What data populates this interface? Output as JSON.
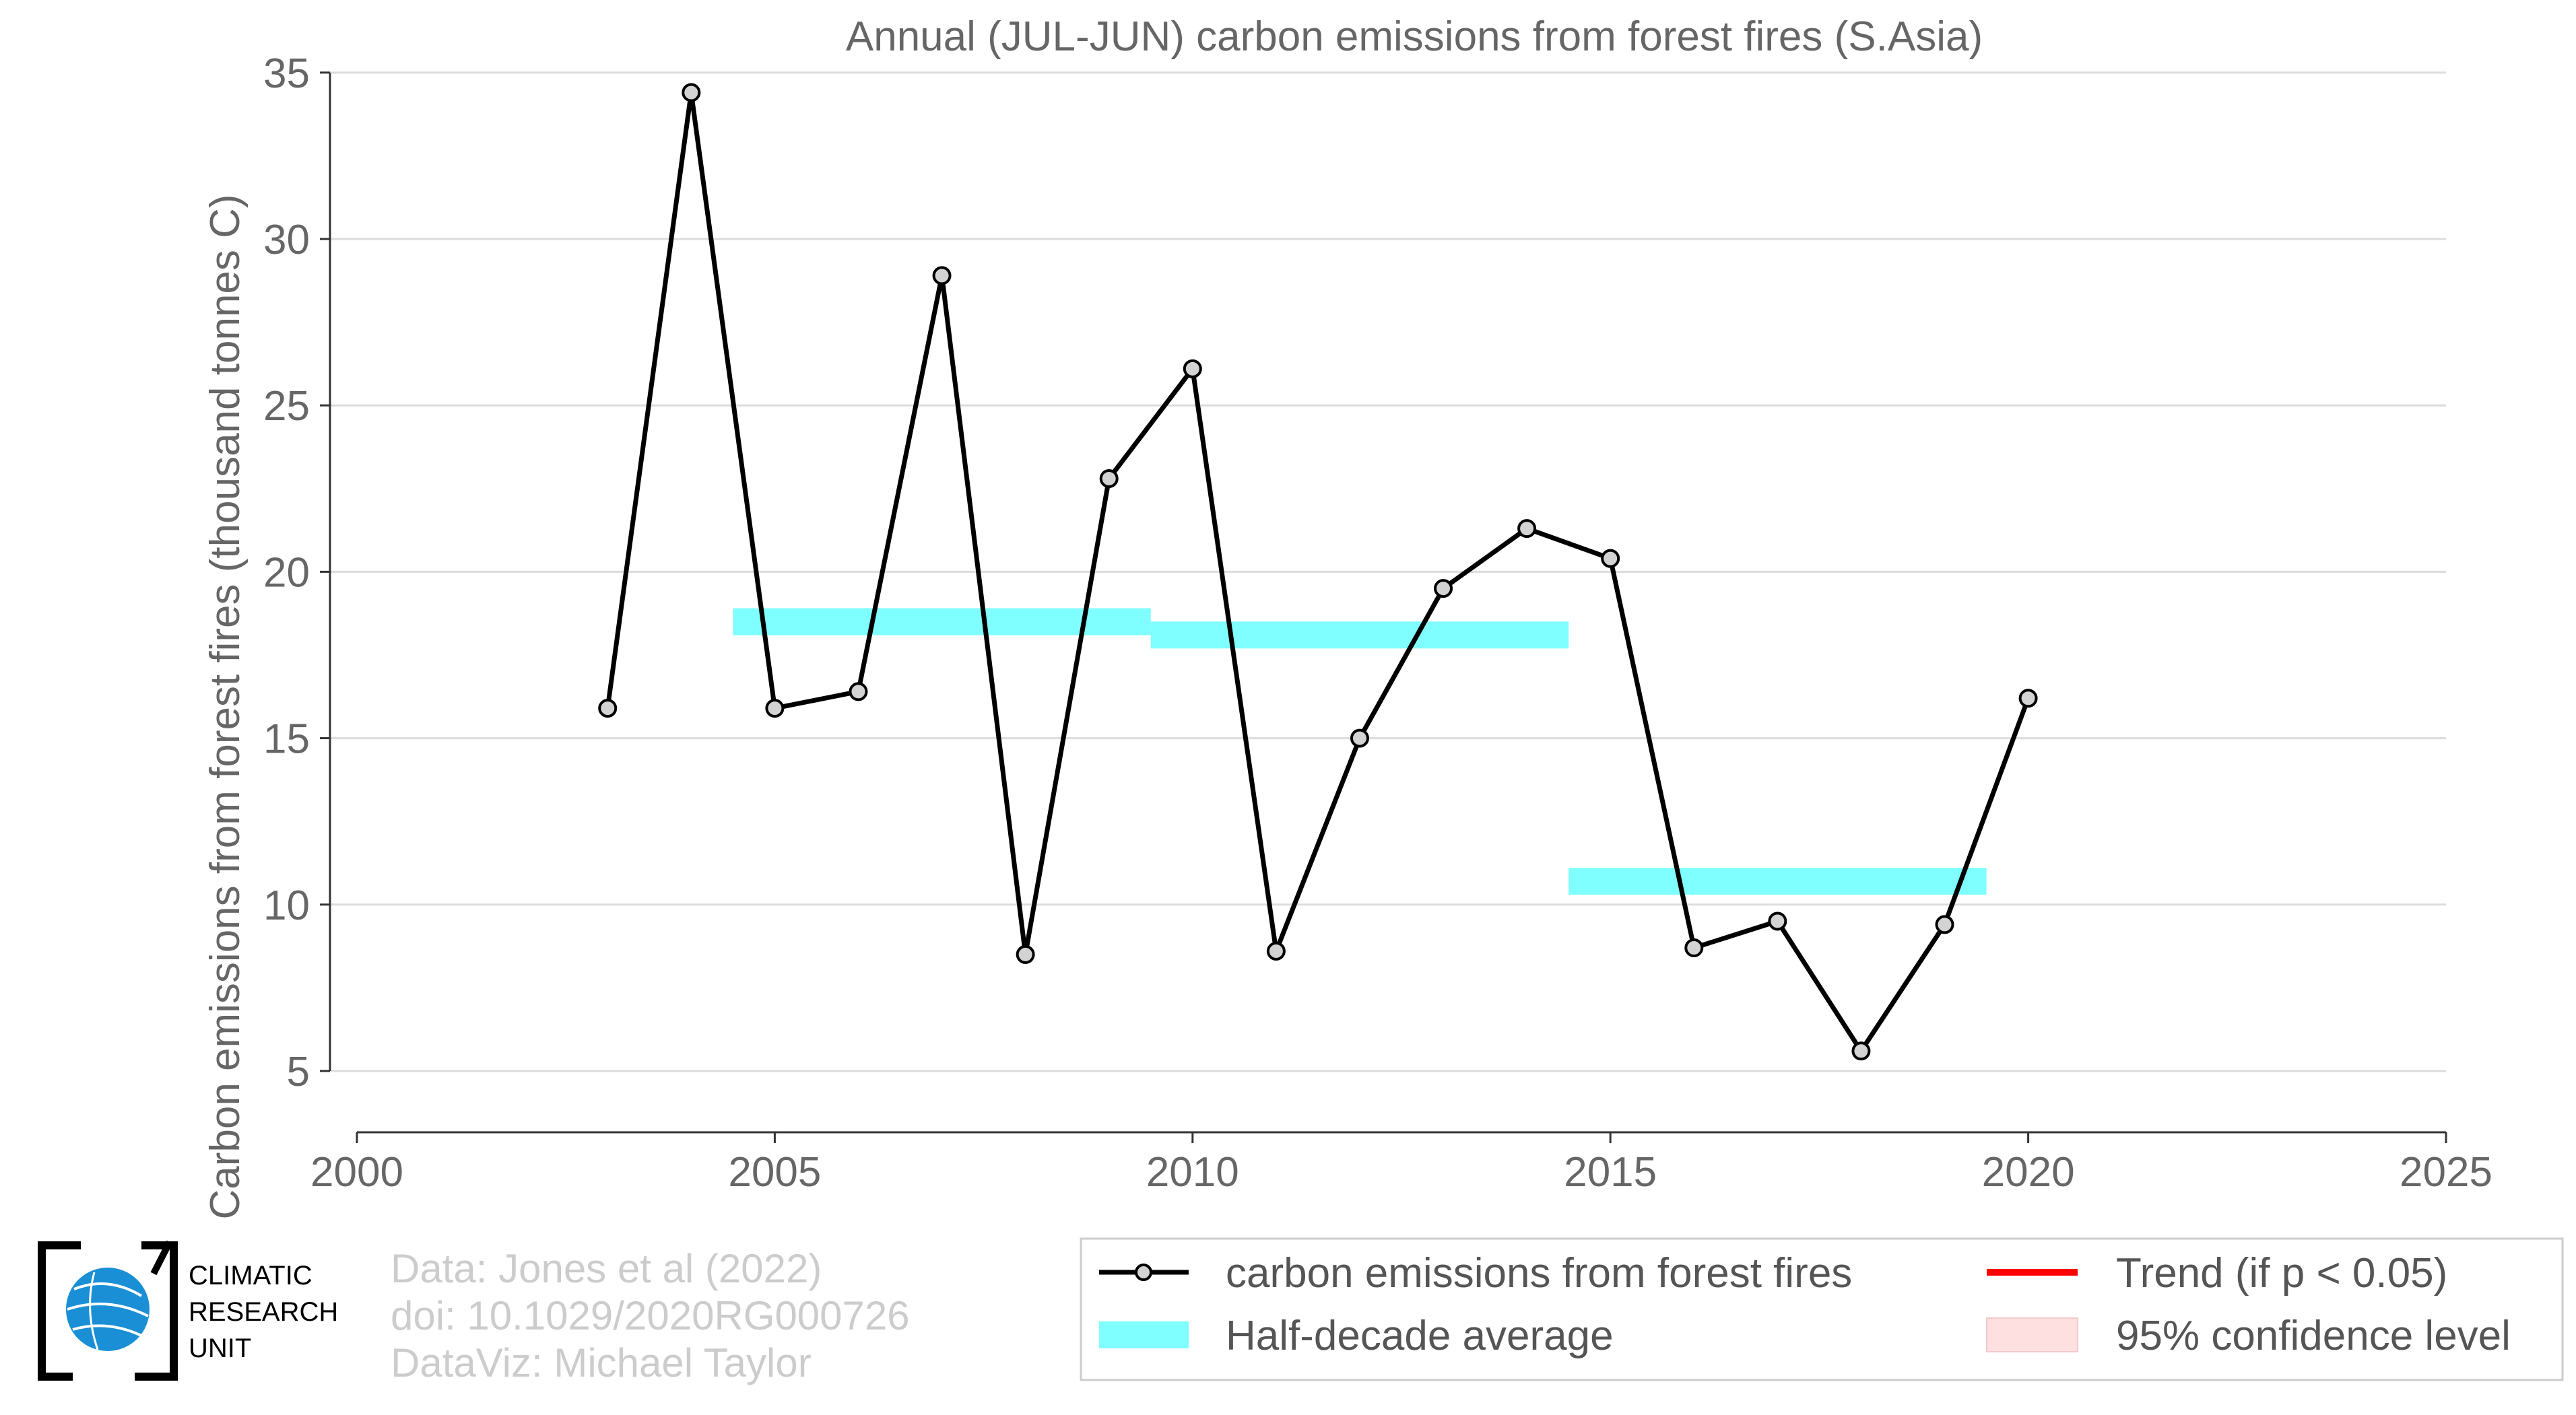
{
  "chart_data": {
    "type": "line",
    "title": "Annual (JUL-JUN) carbon emissions from forest fires (S.Asia)",
    "xlabel": "",
    "ylabel": "Carbon emissions from forest fires (thousand tonnes C)",
    "xlim": [
      2000,
      2025
    ],
    "ylim": [
      3.3,
      35.3
    ],
    "x_ticks": [
      "2000",
      "2005",
      "2010",
      "2015",
      "2020",
      "2025"
    ],
    "y_ticks": [
      "5",
      "10",
      "15",
      "20",
      "25",
      "30",
      "35"
    ],
    "grid": "horizontal",
    "series": [
      {
        "name": "carbon emissions from forest fires",
        "color": "#000000",
        "marker_fill": "#d3d3d3",
        "x": [
          2003,
          2004,
          2005,
          2006,
          2007,
          2008,
          2009,
          2010,
          2011,
          2012,
          2013,
          2014,
          2015,
          2016,
          2017,
          2018,
          2019,
          2020
        ],
        "y": [
          15.9,
          34.4,
          15.9,
          16.4,
          28.9,
          8.5,
          22.8,
          26.1,
          8.6,
          15.0,
          19.5,
          21.3,
          20.4,
          8.7,
          9.5,
          5.6,
          9.4,
          16.2
        ]
      }
    ],
    "half_decade_averages": {
      "name": "Half-decade average",
      "color": "#7fffff",
      "segments": [
        {
          "x_start": 2004.5,
          "x_end": 2009.5,
          "y": 18.5
        },
        {
          "x_start": 2009.5,
          "x_end": 2014.5,
          "y": 18.1
        },
        {
          "x_start": 2014.5,
          "x_end": 2019.5,
          "y": 10.7
        }
      ]
    },
    "legend": {
      "placement": "bottom-right",
      "entries": [
        {
          "label": "carbon emissions from forest fires",
          "symbol": "line-marker",
          "color": "#000000"
        },
        {
          "label": "Trend (if p < 0.05)",
          "symbol": "line",
          "color": "#ff0000"
        },
        {
          "label": "Half-decade average",
          "symbol": "band",
          "color": "#7fffff"
        },
        {
          "label": "95% confidence level",
          "symbol": "patch",
          "color": "#ffe0e0"
        }
      ]
    }
  },
  "credits": {
    "line1": "Data: Jones et al (2022)",
    "line2": "doi: 10.1029/2020RG000726",
    "line3": "DataViz: Michael Taylor"
  },
  "logo": {
    "line1": "CLIMATIC",
    "line2": "RESEARCH",
    "line3": "UNIT",
    "icon": "globe-icon"
  }
}
